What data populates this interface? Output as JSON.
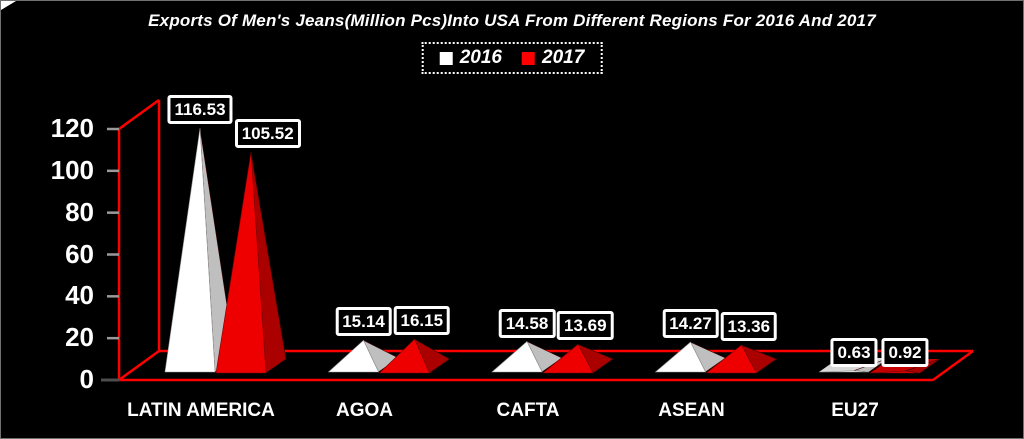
{
  "frame": {
    "background": "#000000",
    "border_color": "#707070"
  },
  "title": "Exports Of Men's Jeans(Million Pcs)Into USA From Different Regions For 2016 And 2017",
  "legend": {
    "items": [
      {
        "label": "2016",
        "color": "#ffffff"
      },
      {
        "label": "2017",
        "color": "#ff0000"
      }
    ]
  },
  "chart_data": {
    "type": "bar",
    "variant": "3d-pyramid",
    "title": "Exports Of Men's Jeans(Million Pcs)Into USA From Different Regions For 2016 And 2017",
    "categories": [
      "LATIN AMERICA",
      "AGOA",
      "CAFTA",
      "ASEAN",
      "EU27"
    ],
    "series": [
      {
        "name": "2016",
        "values": [
          116.53,
          15.14,
          14.58,
          14.27,
          0.63
        ],
        "front_color": "#ffffff",
        "side_color": "#bfbfbf",
        "base_color": "#d9d9d9"
      },
      {
        "name": "2017",
        "values": [
          105.52,
          16.15,
          13.69,
          13.36,
          0.92
        ],
        "front_color": "#ee0000",
        "side_color": "#aa0000",
        "base_color": "#c40000"
      }
    ],
    "data_labels": [
      [
        "116.53",
        "15.14",
        "14.58",
        "14.27",
        "0.63"
      ],
      [
        "105.52",
        "16.15",
        "13.69",
        "13.36",
        "0.92"
      ]
    ],
    "xlabel": "",
    "ylabel": "",
    "ylim": [
      0,
      120
    ],
    "yticks": [
      0,
      20,
      40,
      60,
      80,
      100,
      120
    ],
    "grid": false,
    "legend_position": "top",
    "axis_color": "#ff0000",
    "tick_color": "#9a9a9a",
    "zero_tick_color": "#4d4d4d",
    "text_color": "#ffffff",
    "background_color": "#000000"
  }
}
